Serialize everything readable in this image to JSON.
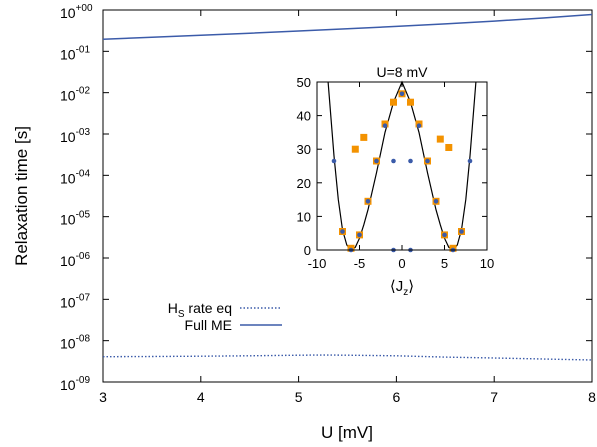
{
  "colors": {
    "accent_blue": "#3b5ba9",
    "accent_orange": "#f39200",
    "axis": "#000000"
  },
  "chart_data": [
    {
      "type": "line",
      "title": "",
      "xlabel": "U [mV]",
      "ylabel": "Relaxation time [s]",
      "xlim": [
        3,
        8
      ],
      "ylim": [
        1e-09,
        1
      ],
      "yscale": "log",
      "grid": false,
      "legend_position": "bottom-left",
      "x_ticks": [
        "3",
        "4",
        "5",
        "6",
        "7",
        "8"
      ],
      "y_ticks": [
        {
          "base": "10",
          "exp": "+00"
        },
        {
          "base": "10",
          "exp": "-01"
        },
        {
          "base": "10",
          "exp": "-02"
        },
        {
          "base": "10",
          "exp": "-03"
        },
        {
          "base": "10",
          "exp": "-04"
        },
        {
          "base": "10",
          "exp": "-05"
        },
        {
          "base": "10",
          "exp": "-06"
        },
        {
          "base": "10",
          "exp": "-07"
        },
        {
          "base": "10",
          "exp": "-08"
        },
        {
          "base": "10",
          "exp": "-09"
        }
      ],
      "series": [
        {
          "name_main": "H",
          "name_sub": "S",
          "name_rest": " rate eq",
          "style": "dotted",
          "color": "#3b5ba9",
          "x": [
            3.0,
            3.5,
            4.0,
            4.5,
            5.0,
            5.25,
            5.5,
            6.0,
            6.5,
            7.0,
            7.5,
            8.0
          ],
          "y": [
            4.1e-09,
            4.15e-09,
            4.2e-09,
            4.3e-09,
            4.45e-09,
            4.5e-09,
            4.45e-09,
            4.3e-09,
            4e-09,
            3.8e-09,
            3.6e-09,
            3.4e-09
          ]
        },
        {
          "name": "Full ME",
          "style": "solid",
          "color": "#3b5ba9",
          "x": [
            3.0,
            3.5,
            4.0,
            4.5,
            5.0,
            5.5,
            6.0,
            6.5,
            7.0,
            7.5,
            8.0
          ],
          "y": [
            0.195,
            0.22,
            0.245,
            0.275,
            0.31,
            0.35,
            0.4,
            0.46,
            0.54,
            0.64,
            0.78
          ]
        }
      ]
    },
    {
      "type": "scatter",
      "title": "U=8 mV",
      "xlabel": "⟨J",
      "xlabel_sub": "z",
      "xlabel_end": "⟩",
      "ylabel": "",
      "xlim": [
        -10,
        10
      ],
      "ylim": [
        0,
        50
      ],
      "x_ticks": [
        "-10",
        "-5",
        "0",
        "5",
        "10"
      ],
      "y_ticks": [
        "0",
        "10",
        "20",
        "30",
        "40",
        "50"
      ],
      "series": [
        {
          "marker": "square",
          "color": "#f39200",
          "x": [
            -7,
            -6,
            -5,
            -4,
            -3,
            -2,
            -1,
            0,
            1,
            2,
            3,
            4,
            5,
            6,
            7
          ],
          "y": [
            5.5,
            0.5,
            4.5,
            14.5,
            26.5,
            37.5,
            44,
            46.5,
            44,
            37.5,
            26.5,
            14.5,
            4.5,
            0.5,
            5.5
          ]
        },
        {
          "marker": "square",
          "color": "#f39200",
          "x": [
            -5.5,
            -4.5,
            4.5,
            5.5
          ],
          "y": [
            30,
            33.5,
            33,
            30.5
          ]
        },
        {
          "marker": "dot",
          "color": "#3b5ba9",
          "x": [
            -8,
            -7,
            -6,
            -5,
            -4,
            -3,
            -2,
            -1,
            0,
            1,
            2,
            3,
            4,
            5,
            6,
            7,
            8
          ],
          "y": [
            26.5,
            5.5,
            0,
            4.5,
            14.5,
            26.5,
            37,
            0,
            46.5,
            0,
            37,
            26.5,
            14.5,
            4.5,
            0,
            5.5,
            26.5
          ]
        },
        {
          "marker": "dot",
          "color": "#3b5ba9",
          "x": [
            -1,
            1
          ],
          "y": [
            26.5,
            26.5
          ]
        }
      ],
      "curve": {
        "style": "solid",
        "color": "#000000",
        "x": [
          -8.7,
          -8.0,
          -7.5,
          -7.0,
          -6.5,
          -6.0,
          -5.5,
          -5.0,
          -4.5,
          -4.0,
          -3.0,
          -2.0,
          -1.0,
          0,
          1.0,
          2.0,
          3.0,
          4.0,
          4.5,
          5.0,
          5.5,
          6.0,
          6.5,
          7.0,
          7.5,
          8.0,
          8.7
        ],
        "y": [
          50,
          28,
          15,
          6,
          1.5,
          0,
          0.8,
          3.5,
          7.5,
          12,
          23,
          35,
          44,
          50,
          44,
          35,
          23,
          12,
          7.5,
          3.5,
          0.8,
          0,
          1.5,
          6,
          15,
          28,
          50
        ]
      }
    }
  ]
}
